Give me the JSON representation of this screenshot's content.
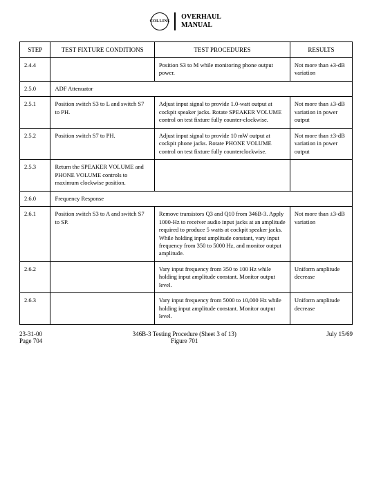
{
  "header": {
    "logo_text": "COLLINS",
    "title_line1": "OVERHAUL",
    "title_line2": "MANUAL"
  },
  "columns": {
    "step": "STEP",
    "conditions": "TEST FIXTURE CONDITIONS",
    "procedures": "TEST PROCEDURES",
    "results": "RESULTS"
  },
  "rows": [
    {
      "type": "row",
      "step": "2.4.4",
      "conditions": "",
      "procedures": "Position S3 to M while monitoring phone output power.",
      "results": "Not more than ±3-dB variation"
    },
    {
      "type": "section",
      "step": "2.5.0",
      "label": "ADF Attenuator"
    },
    {
      "type": "row",
      "step": "2.5.1",
      "conditions": "Position switch S3 to L and switch S7 to PH.",
      "procedures": "Adjust input signal to provide 1.0-watt output at cockpit speaker jacks. Rotate SPEAKER VOLUME control on test fixture fully counter-clockwise.",
      "results": "Not more than ±3-dB variation in power output"
    },
    {
      "type": "row",
      "step": "2.5.2",
      "conditions": "Position switch S7 to PH.",
      "procedures": "Adjust input signal to provide 10 mW output at cockpit phone jacks. Rotate PHONE VOLUME control on test fixture fully counterclockwise.",
      "results": "Not more than ±3-dB variation in power output"
    },
    {
      "type": "row",
      "step": "2.5.3",
      "conditions": "Return the SPEAKER VOLUME and PHONE VOLUME controls to maximum clockwise position.",
      "procedures": "",
      "results": ""
    },
    {
      "type": "section",
      "step": "2.6.0",
      "label": "Frequency Response"
    },
    {
      "type": "row",
      "step": "2.6.1",
      "conditions": "Position switch S3 to A and switch S7 to SP.",
      "procedures": "Remove transistors Q3 and Q10 from 346B-3. Apply 1000-Hz to receiver audio input jacks at an amplitude required to produce 5 watts at cockpit speaker jacks. While holding input amplitude constant, vary input frequency from 350 to 5000 Hz, and monitor output amplitude.",
      "results": "Not more than ±3-dB variation"
    },
    {
      "type": "row",
      "step": "2.6.2",
      "conditions": "",
      "procedures": "Vary input frequency from 350 to 100 Hz while holding input amplitude constant. Monitor output level.",
      "results": "Uniform amplitude decrease"
    },
    {
      "type": "row",
      "step": "2.6.3",
      "conditions": "",
      "procedures": "Vary input frequency from 5000 to 10,000 Hz while holding input amplitude constant. Monitor output level.",
      "results": "Uniform amplitude decrease"
    }
  ],
  "footer": {
    "left_line1": "23-31-00",
    "left_line2": "Page 704",
    "center_line1": "346B-3 Testing Procedure (Sheet 3 of 13)",
    "center_line2": "Figure 701",
    "right": "July 15/69"
  }
}
